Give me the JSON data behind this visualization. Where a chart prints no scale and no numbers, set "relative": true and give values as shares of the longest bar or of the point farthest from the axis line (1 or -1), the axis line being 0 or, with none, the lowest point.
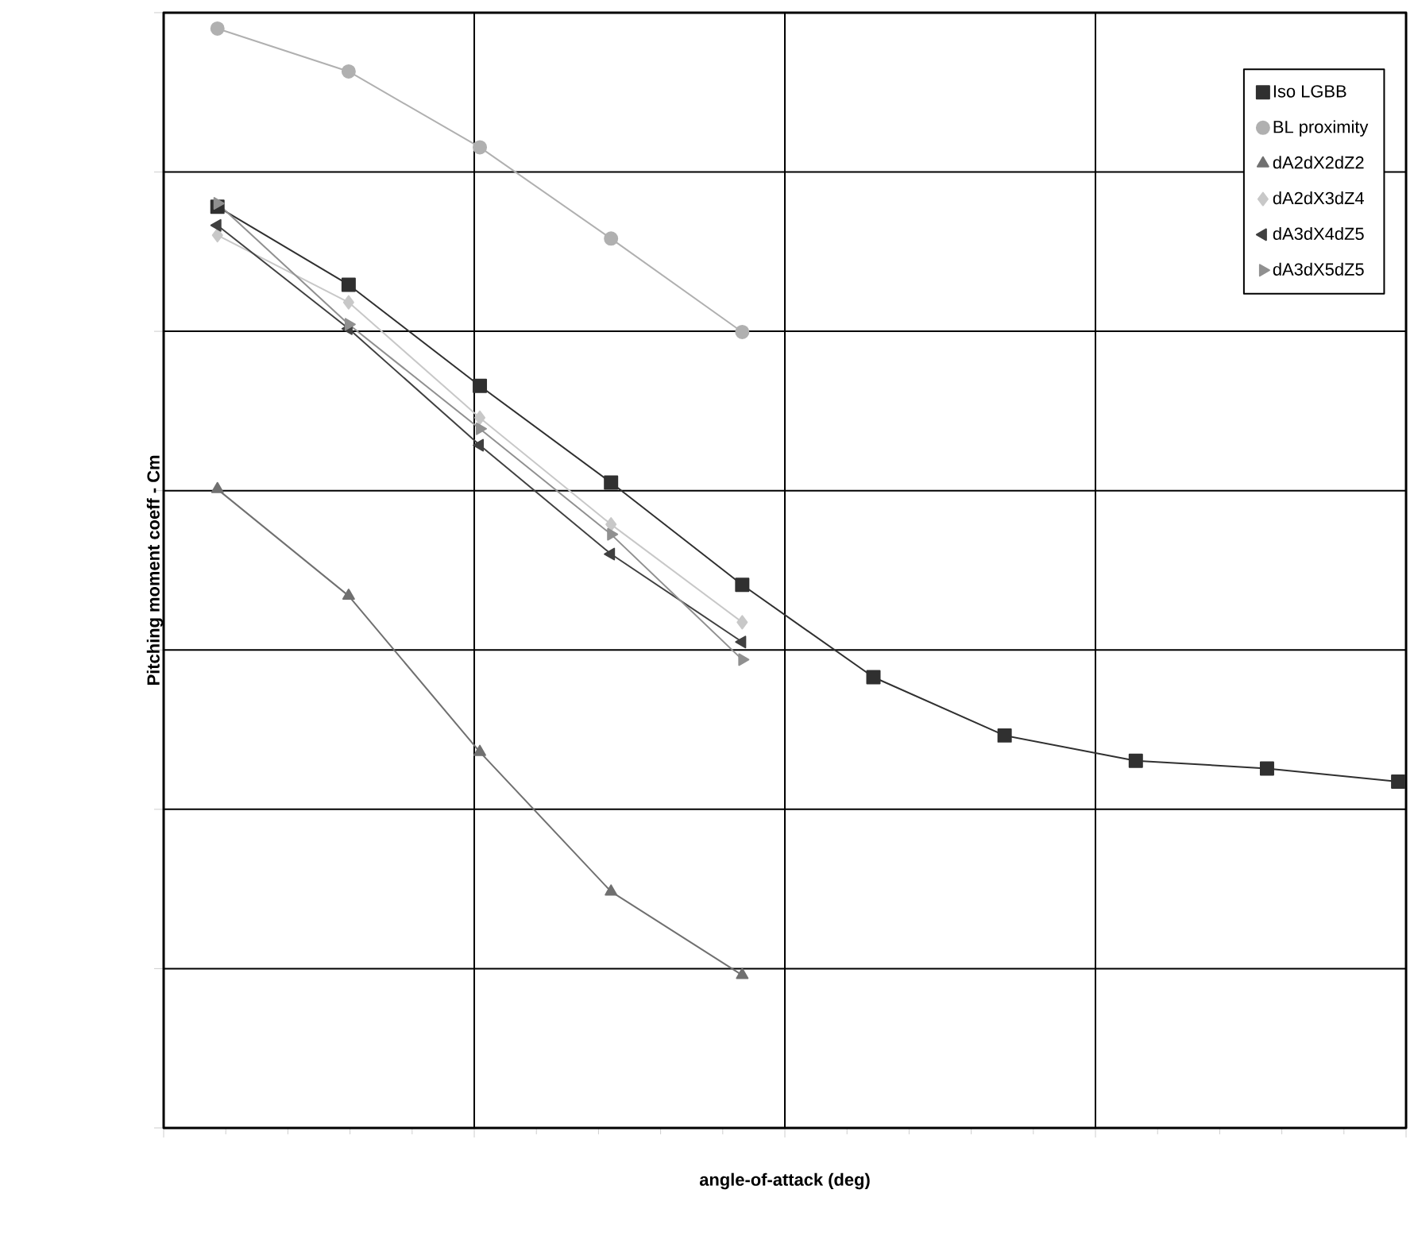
{
  "chart_data": {
    "type": "line",
    "relative": true,
    "xlabel": "angle-of-attack (deg)",
    "ylabel": "Pitching moment coeff - Cm",
    "categories": [
      null,
      null,
      null,
      null,
      null,
      null,
      null,
      null,
      null,
      null
    ],
    "grid": true,
    "legend": "top right",
    "series": [
      {
        "name": "Iso LGBB",
        "color": "#303030",
        "marker": "square",
        "values": [
          0.838,
          0.767,
          0.675,
          0.587,
          0.494,
          0.41,
          0.357,
          0.334,
          0.327,
          0.315
        ]
      },
      {
        "name": "BL proximity",
        "color": "#b0b0b0",
        "marker": "circle",
        "values": [
          1.0,
          0.961,
          0.892,
          0.809,
          0.724,
          null,
          null,
          null,
          null,
          null
        ]
      },
      {
        "name": "dA2dX2dZ2",
        "color": "#707070",
        "marker": "triangle",
        "values": [
          0.581,
          0.484,
          0.342,
          0.215,
          0.139,
          null,
          null,
          null,
          null,
          null
        ]
      },
      {
        "name": "dA2dX3dZ4",
        "color": "#c8c8c8",
        "marker": "diamond",
        "values": [
          0.812,
          0.751,
          0.646,
          0.549,
          0.46,
          null,
          null,
          null,
          null,
          null
        ]
      },
      {
        "name": "dA3dX4dZ5",
        "color": "#404040",
        "marker": "triangle",
        "values": [
          0.821,
          0.727,
          0.621,
          0.522,
          0.442,
          null,
          null,
          null,
          null,
          null
        ]
      },
      {
        "name": "dA3dX5dZ5",
        "color": "#909090",
        "marker": "triangle",
        "values": [
          0.841,
          0.731,
          0.636,
          0.54,
          0.426,
          null,
          null,
          null,
          null,
          null
        ]
      }
    ]
  }
}
